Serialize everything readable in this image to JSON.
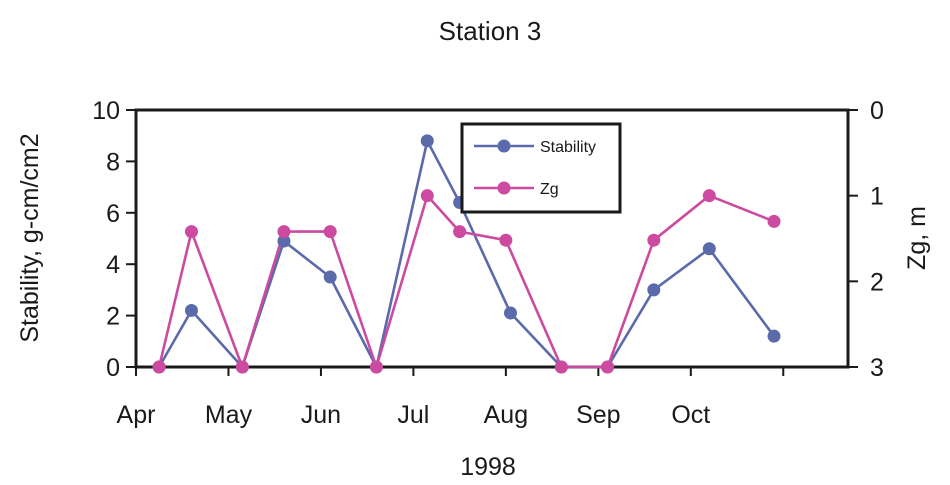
{
  "chart_data": {
    "type": "line",
    "title": "Station 3",
    "xlabel": "1998",
    "ylabel": "Stability, g-cm/cm2",
    "y2label": "Zg, m",
    "x_ticks": [
      "Apr",
      "May",
      "Jun",
      "Jul",
      "Aug",
      "Sep",
      "Oct"
    ],
    "x_domain": [
      0,
      7.7
    ],
    "ylim": [
      0,
      10
    ],
    "y_ticks": [
      0,
      2,
      4,
      6,
      8,
      10
    ],
    "y2lim": [
      3,
      0
    ],
    "y2_ticks": [
      0,
      1,
      2,
      3
    ],
    "y2_inverted": true,
    "grid": false,
    "legend": "top-center",
    "series": [
      {
        "name": "Stability",
        "axis": "left",
        "color": "#5a6aaa",
        "x": [
          0.25,
          0.6,
          1.15,
          1.6,
          2.1,
          2.6,
          3.15,
          3.5,
          4.05,
          4.6,
          5.1,
          5.6,
          6.2,
          6.9
        ],
        "y": [
          0,
          2.2,
          0,
          4.9,
          3.5,
          0,
          8.8,
          6.4,
          2.1,
          0,
          0,
          3.0,
          4.6,
          1.2
        ]
      },
      {
        "name": "Zg",
        "axis": "right",
        "color": "#cc4aa0",
        "x": [
          0.25,
          0.6,
          1.15,
          1.6,
          2.1,
          2.6,
          3.15,
          3.5,
          4.0,
          4.6,
          5.1,
          5.6,
          6.2,
          6.9
        ],
        "y": [
          3.0,
          1.42,
          3.0,
          1.42,
          1.42,
          3.0,
          1.0,
          1.42,
          1.52,
          3.0,
          3.0,
          1.52,
          1.0,
          1.3
        ]
      }
    ]
  }
}
